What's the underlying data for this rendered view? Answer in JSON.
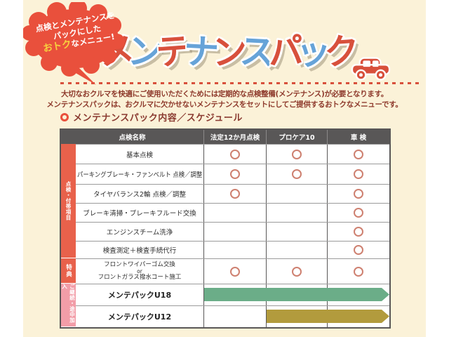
{
  "colors": {
    "background": "#FBF2D8",
    "badge_red": "#E9503C",
    "badge_yellow": "#F7D23E",
    "title_red": "#D8503C",
    "title_blue": "#66A3D8",
    "dash_red": "#D8503C",
    "intro_text": "#8E3A2C",
    "section_text": "#8A3A30",
    "header_bg": "#595757",
    "circle_mark": "#CE8070",
    "label_red": "#E8614B",
    "label_pink": "#F29DA8",
    "arrow_green": "#6BAD88",
    "arrow_olive": "#B29B3D"
  },
  "badge": {
    "line1": "点検とメンテナンスを",
    "line2": "パックにした",
    "line3_highlight": "おトク",
    "line3_rest": "なメニュー!"
  },
  "title": {
    "text": "メンテナンスパック",
    "chars": [
      {
        "ch": "メ",
        "color": "red"
      },
      {
        "ch": "ン",
        "color": "blue"
      },
      {
        "ch": "テ",
        "color": "red"
      },
      {
        "ch": "ナ",
        "color": "blue"
      },
      {
        "ch": "ン",
        "color": "red"
      },
      {
        "ch": "ス",
        "color": "blue"
      },
      {
        "ch": "パ",
        "color": "red"
      },
      {
        "ch": "ッ",
        "color": "blue"
      },
      {
        "ch": "ク",
        "color": "red"
      }
    ]
  },
  "intro": {
    "line1": "大切なおクルマを快適にご使用いただくためには定期的な点検整備(メンテナンス)が必要となります。",
    "line2": "メンテナンスパックは、おクルマに欠かせないメンテナンスをセットにしてご提供するおトクなメニューです。"
  },
  "section": {
    "title": "メンテナンスパック内容／スケジュール"
  },
  "table": {
    "headers": [
      "点検名称",
      "法定12か月点検",
      "プロケア10",
      "車 検"
    ],
    "groups": [
      {
        "label": "点検・付帯項目",
        "color_key": "label_red",
        "rows": [
          0,
          1,
          2,
          3,
          4,
          5
        ]
      },
      {
        "label": "特典",
        "color_key": "label_red",
        "rows": [
          6
        ]
      },
      {
        "label": "ご継続・途中加入",
        "color_key": "label_pink",
        "rows": [
          7,
          8
        ]
      }
    ],
    "rows": [
      {
        "name": "基本点検",
        "marks": [
          true,
          true,
          true
        ]
      },
      {
        "name": "パーキングブレーキ・ファンベルト 点検／調整",
        "marks": [
          true,
          true,
          true
        ]
      },
      {
        "name": "タイヤバランス2輪 点検／調整",
        "marks": [
          true,
          false,
          true
        ]
      },
      {
        "name": "ブレーキ清掃・ブレーキフルード交換",
        "marks": [
          false,
          false,
          true
        ]
      },
      {
        "name": "エンジンスチーム洗浄",
        "marks": [
          false,
          false,
          true
        ]
      },
      {
        "name": "検査測定＋検査手続代行",
        "marks": [
          false,
          false,
          true
        ]
      },
      {
        "name_lines": [
          "フロントワイパーゴム交換",
          "or",
          "フロントガラス撥水コート施工"
        ],
        "marks": [
          true,
          true,
          true
        ]
      },
      {
        "name": "メンテパックU18",
        "bold": true,
        "arrow": {
          "color_key": "arrow_green",
          "from_col": 0,
          "covers": [
            "法定12か月点検",
            "プロケア10",
            "車 検"
          ]
        }
      },
      {
        "name": "メンテパックU12",
        "bold": true,
        "arrow": {
          "color_key": "arrow_olive",
          "from_col": 1,
          "covers": [
            "プロケア10",
            "車 検"
          ]
        }
      }
    ]
  }
}
